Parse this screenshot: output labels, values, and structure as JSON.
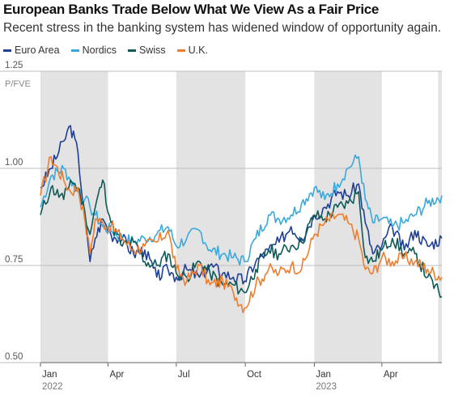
{
  "title": "European Banks Trade Below What We View As a Fair Price",
  "subtitle": "Recent stress in the banking system has widened window of opportunity again.",
  "colors": {
    "euro_area": "#1f3f96",
    "nordics": "#39a9dc",
    "swiss": "#0e5a57",
    "uk": "#ef7d2e",
    "band": "#e3e3e3",
    "grid": "#bdbdbd"
  },
  "legend": [
    {
      "label": "Euro Area",
      "color": "#1f3f96"
    },
    {
      "label": "Nordics",
      "color": "#39a9dc"
    },
    {
      "label": "Swiss",
      "color": "#0e5a57"
    },
    {
      "label": "U.K.",
      "color": "#ef7d2e"
    }
  ],
  "chart_data": {
    "type": "line",
    "ylabel": "P/FVE",
    "ylim": [
      0.5,
      1.25
    ],
    "yticks": [
      "1.25",
      "1.00",
      "0.75",
      "0.50"
    ],
    "x_tick_labels": [
      {
        "label": "Jan",
        "sub": "2022"
      },
      {
        "label": "Apr",
        "sub": ""
      },
      {
        "label": "Jul",
        "sub": ""
      },
      {
        "label": "Oct",
        "sub": ""
      },
      {
        "label": "Jan",
        "sub": "2023"
      },
      {
        "label": "Apr",
        "sub": ""
      }
    ],
    "x_range": [
      "2022-01-01",
      "2023-06-20"
    ],
    "x": [
      "2022-01-01",
      "2022-01-15",
      "2022-02-01",
      "2022-02-10",
      "2022-02-20",
      "2022-03-01",
      "2022-03-08",
      "2022-03-15",
      "2022-03-25",
      "2022-04-05",
      "2022-04-20",
      "2022-05-05",
      "2022-05-20",
      "2022-06-05",
      "2022-06-20",
      "2022-07-01",
      "2022-07-15",
      "2022-08-01",
      "2022-08-15",
      "2022-09-01",
      "2022-09-15",
      "2022-09-30",
      "2022-10-15",
      "2022-11-01",
      "2022-11-15",
      "2022-12-01",
      "2022-12-15",
      "2023-01-01",
      "2023-01-15",
      "2023-02-01",
      "2023-02-15",
      "2023-03-01",
      "2023-03-10",
      "2023-03-20",
      "2023-04-01",
      "2023-04-15",
      "2023-05-01",
      "2023-05-15",
      "2023-06-01",
      "2023-06-20"
    ],
    "series": [
      {
        "name": "Euro Area",
        "values": [
          0.95,
          1.0,
          1.07,
          1.11,
          1.04,
          0.87,
          0.76,
          0.82,
          0.87,
          0.83,
          0.82,
          0.78,
          0.79,
          0.72,
          0.74,
          0.72,
          0.74,
          0.72,
          0.75,
          0.73,
          0.72,
          0.71,
          0.76,
          0.79,
          0.81,
          0.85,
          0.82,
          0.88,
          0.9,
          0.94,
          0.93,
          0.96,
          0.86,
          0.78,
          0.8,
          0.85,
          0.79,
          0.84,
          0.8,
          0.82
        ]
      },
      {
        "name": "Nordics",
        "values": [
          0.9,
          0.98,
          1.0,
          0.97,
          0.94,
          0.92,
          0.9,
          0.88,
          0.85,
          0.84,
          0.82,
          0.81,
          0.82,
          0.83,
          0.85,
          0.8,
          0.82,
          0.84,
          0.79,
          0.78,
          0.77,
          0.76,
          0.82,
          0.88,
          0.87,
          0.88,
          0.91,
          0.95,
          0.92,
          0.96,
          1.0,
          1.03,
          0.92,
          0.86,
          0.87,
          0.85,
          0.86,
          0.88,
          0.91,
          0.93
        ]
      },
      {
        "name": "Swiss",
        "values": [
          0.88,
          0.95,
          0.92,
          0.97,
          0.95,
          0.89,
          0.83,
          0.9,
          0.97,
          0.86,
          0.8,
          0.81,
          0.76,
          0.75,
          0.78,
          0.73,
          0.72,
          0.76,
          0.73,
          0.7,
          0.7,
          0.68,
          0.74,
          0.79,
          0.78,
          0.8,
          0.81,
          0.88,
          0.87,
          0.9,
          0.91,
          0.94,
          0.77,
          0.76,
          0.79,
          0.82,
          0.78,
          0.78,
          0.72,
          0.67
        ]
      },
      {
        "name": "U.K.",
        "values": [
          0.93,
          1.03,
          0.97,
          0.94,
          0.95,
          0.87,
          0.78,
          0.87,
          0.86,
          0.85,
          0.82,
          0.79,
          0.8,
          0.81,
          0.84,
          0.74,
          0.71,
          0.75,
          0.7,
          0.71,
          0.68,
          0.64,
          0.7,
          0.74,
          0.73,
          0.75,
          0.74,
          0.83,
          0.86,
          0.88,
          0.86,
          0.82,
          0.74,
          0.73,
          0.77,
          0.76,
          0.77,
          0.76,
          0.74,
          0.72
        ]
      }
    ]
  }
}
